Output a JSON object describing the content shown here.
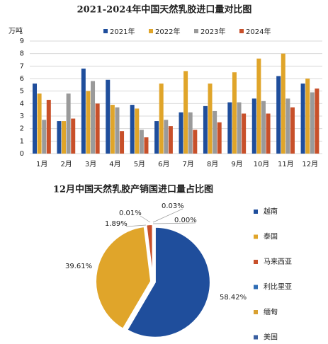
{
  "chart_data": [
    {
      "type": "bar",
      "title": "2021-2024年中国天然乳胶进口量对比图",
      "y_label": "万吨",
      "categories": [
        "1月",
        "2月",
        "3月",
        "4月",
        "5月",
        "6月",
        "7月",
        "8月",
        "9月",
        "10月",
        "11月",
        "12月"
      ],
      "series": [
        {
          "name": "2021年",
          "color": "#1f4e9c",
          "values": [
            5.6,
            2.6,
            6.8,
            5.9,
            3.9,
            2.6,
            3.3,
            3.8,
            4.1,
            4.4,
            6.2,
            5.6
          ]
        },
        {
          "name": "2022年",
          "color": "#e0a52a",
          "values": [
            4.8,
            2.6,
            5.0,
            3.9,
            3.6,
            5.6,
            6.6,
            5.6,
            6.5,
            7.6,
            8.0,
            6.0
          ]
        },
        {
          "name": "2023年",
          "color": "#9a9a9a",
          "values": [
            2.7,
            4.8,
            5.8,
            3.7,
            1.9,
            2.7,
            3.3,
            3.4,
            4.1,
            4.2,
            4.4,
            4.9
          ]
        },
        {
          "name": "2024年",
          "color": "#c8502a",
          "values": [
            4.3,
            2.8,
            4.0,
            1.8,
            1.3,
            2.2,
            1.9,
            2.5,
            3.2,
            3.2,
            3.7,
            5.2
          ]
        }
      ],
      "ylim": [
        0,
        9
      ],
      "yticks": [
        0,
        1,
        2,
        3,
        4,
        5,
        6,
        7,
        8,
        9
      ],
      "grid": true
    },
    {
      "type": "pie",
      "title": "12月中国天然乳胶产销国进口量占比图",
      "categories": [
        "越南",
        "泰国",
        "马来西亚",
        "利比里亚",
        "缅甸",
        "美国"
      ],
      "values": [
        58.42,
        39.61,
        1.89,
        0.01,
        0.03,
        0.0
      ],
      "value_labels": [
        "58.42%",
        "39.61%",
        "1.89%",
        "0.01%",
        "0.03%",
        "0.00%"
      ],
      "colors": [
        "#1f4e9c",
        "#e0a52a",
        "#c8502a",
        "#2f6db5",
        "#d9a030",
        "#3a5fa0"
      ]
    }
  ]
}
